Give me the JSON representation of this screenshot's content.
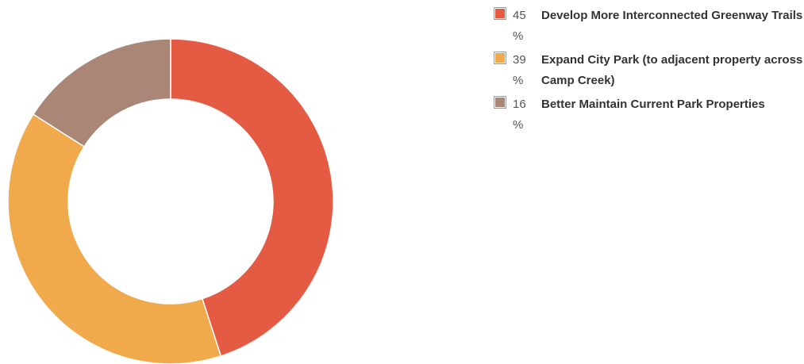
{
  "chart_data": {
    "type": "pie",
    "variant": "donut",
    "title": "",
    "categories": [
      "Develop More Interconnected Greenway Trails",
      "Expand City Park (to adjacent property across Camp Creek)",
      "Better Maintain Current Park Properties"
    ],
    "values": [
      45,
      39,
      16
    ],
    "value_labels": [
      "45 %",
      "39 %",
      "16 %"
    ],
    "unit": "%",
    "colors": [
      "#e55a42",
      "#f0aa4c",
      "#aa8677"
    ],
    "legend_position": "right"
  }
}
